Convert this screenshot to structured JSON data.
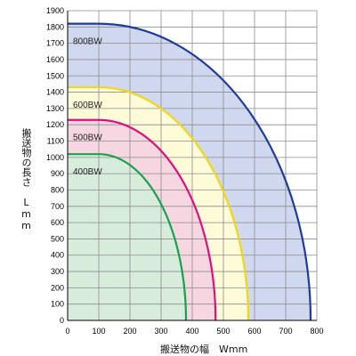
{
  "chart_data": {
    "type": "area",
    "xlabel": "搬送物の幅　Wmm",
    "ylabel": "搬送物の長さ　Lmm",
    "xlim": [
      0,
      800
    ],
    "ylim": [
      0,
      1900
    ],
    "xticks": [
      0,
      100,
      200,
      300,
      400,
      500,
      600,
      700,
      800
    ],
    "yticks": [
      0,
      100,
      200,
      300,
      400,
      500,
      600,
      700,
      800,
      900,
      1000,
      1100,
      1200,
      1300,
      1400,
      1500,
      1600,
      1700,
      1800,
      1900
    ],
    "grid": true,
    "series": [
      {
        "name": "800BW",
        "max_length": 1820,
        "max_width": 780,
        "flat_until_width": 100,
        "stroke": "#1f3c99",
        "fill": "#cfd8ee"
      },
      {
        "name": "600BW",
        "max_length": 1430,
        "max_width": 580,
        "flat_until_width": 100,
        "stroke": "#f2d61a",
        "fill": "#fdfbd8"
      },
      {
        "name": "500BW",
        "max_length": 1230,
        "max_width": 475,
        "flat_until_width": 100,
        "stroke": "#e0107a",
        "fill": "#f6d6e1"
      },
      {
        "name": "400BW",
        "max_length": 1020,
        "max_width": 380,
        "flat_until_width": 100,
        "stroke": "#1aa050",
        "fill": "#d8ecdc"
      }
    ]
  }
}
